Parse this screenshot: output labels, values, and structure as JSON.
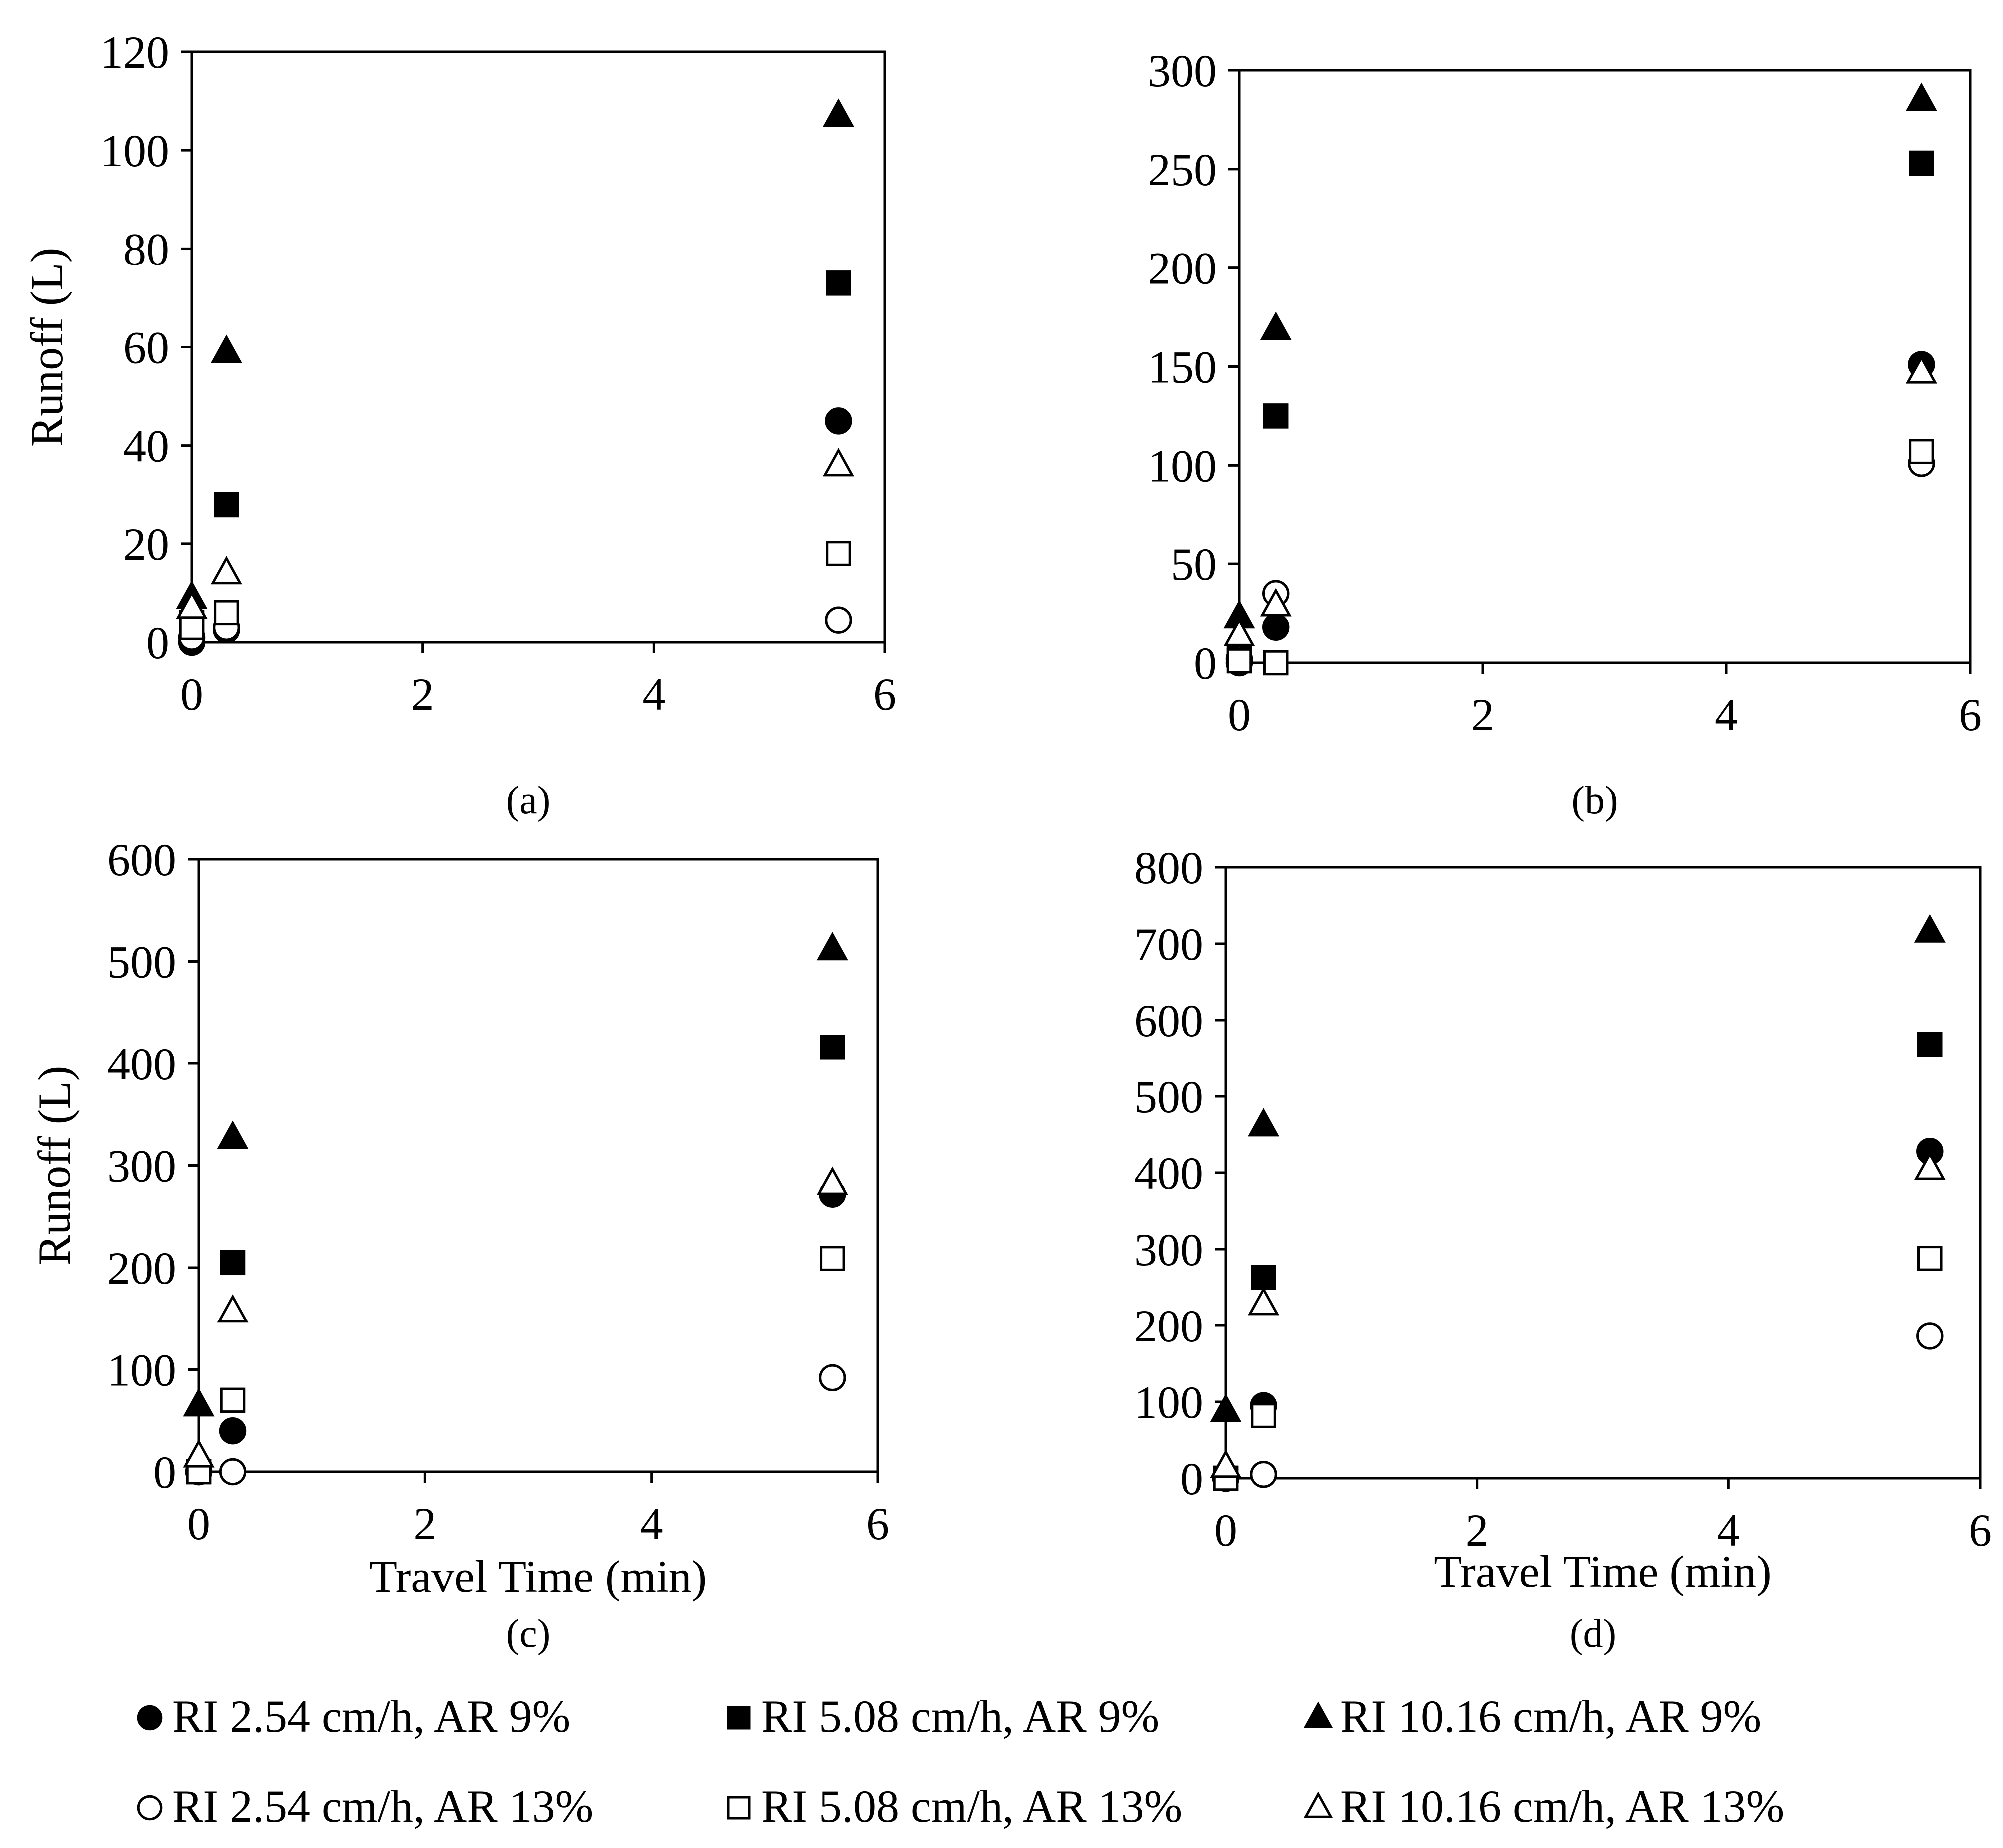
{
  "colors": {
    "ink": "#000000",
    "background": "#ffffff"
  },
  "chart_data": [
    {
      "type": "scatter",
      "panel": "a",
      "panel_label": "(a)",
      "ylabel": "Runoff (L)",
      "xlabel": "",
      "xlim": [
        0,
        6
      ],
      "ylim": [
        0,
        120
      ],
      "xticks": [
        0,
        2,
        4,
        6
      ],
      "yticks": [
        0,
        20,
        40,
        60,
        80,
        100,
        120
      ],
      "series": [
        {
          "name": "RI 2.54 cm/h, AR 9%",
          "marker": "circle",
          "filled": true,
          "x": [
            0,
            0.3,
            5.6
          ],
          "y": [
            0,
            2.5,
            45
          ]
        },
        {
          "name": "RI 5.08 cm/h, AR 9%",
          "marker": "square",
          "filled": true,
          "x": [
            0,
            0.3,
            5.6
          ],
          "y": [
            4,
            28,
            73
          ]
        },
        {
          "name": "RI 10.16 cm/h, AR 9%",
          "marker": "triangle",
          "filled": true,
          "x": [
            0,
            0.3,
            5.6
          ],
          "y": [
            9,
            59,
            107
          ]
        },
        {
          "name": "RI 2.54 cm/h, AR 13%",
          "marker": "circle",
          "filled": false,
          "x": [
            0,
            0.3,
            5.6
          ],
          "y": [
            1,
            3,
            4.5
          ]
        },
        {
          "name": "RI 5.08 cm/h, AR 13%",
          "marker": "square",
          "filled": false,
          "x": [
            0,
            0.3,
            5.6
          ],
          "y": [
            3,
            6,
            18
          ]
        },
        {
          "name": "RI 10.16 cm/h, AR 13%",
          "marker": "triangle",
          "filled": false,
          "x": [
            0,
            0.3,
            5.6
          ],
          "y": [
            7,
            14,
            36
          ]
        }
      ]
    },
    {
      "type": "scatter",
      "panel": "b",
      "panel_label": "(b)",
      "ylabel": "",
      "xlabel": "",
      "xlim": [
        0,
        6
      ],
      "ylim": [
        0,
        300
      ],
      "xticks": [
        0,
        2,
        4,
        6
      ],
      "yticks": [
        0,
        50,
        100,
        150,
        200,
        250,
        300
      ],
      "series": [
        {
          "name": "RI 2.54 cm/h, AR 9%",
          "marker": "circle",
          "filled": true,
          "x": [
            0,
            0.3,
            5.6
          ],
          "y": [
            0,
            18,
            151
          ]
        },
        {
          "name": "RI 5.08 cm/h, AR 9%",
          "marker": "square",
          "filled": true,
          "x": [
            0,
            0.3,
            5.6
          ],
          "y": [
            5,
            125,
            253
          ]
        },
        {
          "name": "RI 10.16 cm/h, AR 9%",
          "marker": "triangle",
          "filled": true,
          "x": [
            0,
            0.3,
            5.6
          ],
          "y": [
            23,
            169,
            285
          ]
        },
        {
          "name": "RI 2.54 cm/h, AR 13%",
          "marker": "circle",
          "filled": false,
          "x": [
            0,
            0.3,
            5.6
          ],
          "y": [
            2,
            35,
            101
          ]
        },
        {
          "name": "RI 5.08 cm/h, AR 13%",
          "marker": "square",
          "filled": false,
          "x": [
            0,
            0.3,
            5.6
          ],
          "y": [
            1,
            0,
            107
          ]
        },
        {
          "name": "RI 10.16 cm/h, AR 13%",
          "marker": "triangle",
          "filled": false,
          "x": [
            0,
            0.3,
            5.6
          ],
          "y": [
            14,
            29,
            147
          ]
        }
      ]
    },
    {
      "type": "scatter",
      "panel": "c",
      "panel_label": "(c)",
      "ylabel": "Runoff (L)",
      "xlabel": "Travel Time (min)",
      "xlim": [
        0,
        6
      ],
      "ylim": [
        0,
        600
      ],
      "xticks": [
        0,
        2,
        4,
        6
      ],
      "yticks": [
        0,
        100,
        200,
        300,
        400,
        500,
        600
      ],
      "series": [
        {
          "name": "RI 2.54 cm/h, AR 9%",
          "marker": "circle",
          "filled": true,
          "x": [
            0,
            0.3,
            5.6
          ],
          "y": [
            0,
            40,
            272
          ]
        },
        {
          "name": "RI 5.08 cm/h, AR 9%",
          "marker": "square",
          "filled": true,
          "x": [
            0,
            0.3,
            5.6
          ],
          "y": [
            0,
            205,
            416
          ]
        },
        {
          "name": "RI 10.16 cm/h, AR 9%",
          "marker": "triangle",
          "filled": true,
          "x": [
            0,
            0.3,
            5.6
          ],
          "y": [
            65,
            327,
            512
          ]
        },
        {
          "name": "RI 2.54 cm/h, AR 13%",
          "marker": "circle",
          "filled": false,
          "x": [
            0,
            0.3,
            5.6
          ],
          "y": [
            0,
            0,
            92
          ]
        },
        {
          "name": "RI 5.08 cm/h, AR 13%",
          "marker": "square",
          "filled": false,
          "x": [
            0,
            0.3,
            5.6
          ],
          "y": [
            0,
            70,
            209
          ]
        },
        {
          "name": "RI 10.16 cm/h, AR 13%",
          "marker": "triangle",
          "filled": false,
          "x": [
            0,
            0.3,
            5.6
          ],
          "y": [
            15,
            157,
            282
          ]
        }
      ]
    },
    {
      "type": "scatter",
      "panel": "d",
      "panel_label": "(d)",
      "ylabel": "",
      "xlabel": "Travel Time (min)",
      "xlim": [
        0,
        6
      ],
      "ylim": [
        0,
        800
      ],
      "xticks": [
        0,
        2,
        4,
        6
      ],
      "yticks": [
        0,
        100,
        200,
        300,
        400,
        500,
        600,
        700,
        800
      ],
      "series": [
        {
          "name": "RI 2.54 cm/h, AR 9%",
          "marker": "circle",
          "filled": true,
          "x": [
            0,
            0.3,
            5.6
          ],
          "y": [
            0,
            95,
            428
          ]
        },
        {
          "name": "RI 5.08 cm/h, AR 9%",
          "marker": "square",
          "filled": true,
          "x": [
            0,
            0.3,
            5.6
          ],
          "y": [
            0,
            263,
            568
          ]
        },
        {
          "name": "RI 10.16 cm/h, AR 9%",
          "marker": "triangle",
          "filled": true,
          "x": [
            0,
            0.3,
            5.6
          ],
          "y": [
            88,
            462,
            716
          ]
        },
        {
          "name": "RI 2.54 cm/h, AR 13%",
          "marker": "circle",
          "filled": false,
          "x": [
            0,
            0.3,
            5.6
          ],
          "y": [
            0,
            5,
            186
          ]
        },
        {
          "name": "RI 5.08 cm/h, AR 13%",
          "marker": "square",
          "filled": false,
          "x": [
            0,
            0.3,
            5.6
          ],
          "y": [
            0,
            82,
            288
          ]
        },
        {
          "name": "RI 10.16 cm/h, AR 13%",
          "marker": "triangle",
          "filled": false,
          "x": [
            0,
            0.3,
            5.6
          ],
          "y": [
            15,
            228,
            405
          ]
        }
      ]
    }
  ],
  "legend": {
    "placement": "bottom",
    "entries": [
      {
        "label": "RI 2.54 cm/h, AR 9%",
        "marker": "circle",
        "filled": true
      },
      {
        "label": "RI 5.08 cm/h, AR 9%",
        "marker": "square",
        "filled": true
      },
      {
        "label": "RI 10.16 cm/h, AR 9%",
        "marker": "triangle",
        "filled": true
      },
      {
        "label": "RI 2.54 cm/h, AR 13%",
        "marker": "circle",
        "filled": false
      },
      {
        "label": "RI 5.08 cm/h, AR 13%",
        "marker": "square",
        "filled": false
      },
      {
        "label": "RI 10.16 cm/h, AR 13%",
        "marker": "triangle",
        "filled": false
      }
    ]
  }
}
